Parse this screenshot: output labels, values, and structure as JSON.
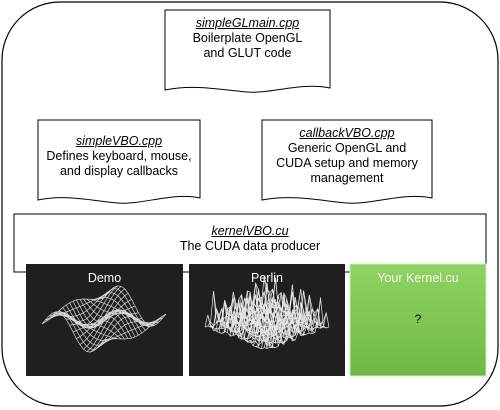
{
  "files": {
    "main": {
      "filename": "simpleGLmain.cpp",
      "description": "Boilerplate OpenGL and GLUT code"
    },
    "vbo": {
      "filename": "simpleVBO.cpp",
      "description": "Defines keyboard, mouse, and display callbacks"
    },
    "callback": {
      "filename": "callbackVBO.cpp",
      "description": "Generic OpenGL and CUDA setup and memory management"
    },
    "kernel": {
      "filename": "kernelVBO.cu",
      "description": "The CUDA data producer"
    }
  },
  "panels": {
    "demo": {
      "label": "Demo"
    },
    "perlin": {
      "label": "Perlin"
    },
    "yours": {
      "label": "Your Kernel.cu",
      "content": "?"
    }
  },
  "colors": {
    "panel_bg": "#222222",
    "your_kernel_bg": "#8dcf5f",
    "line": "#000000"
  }
}
